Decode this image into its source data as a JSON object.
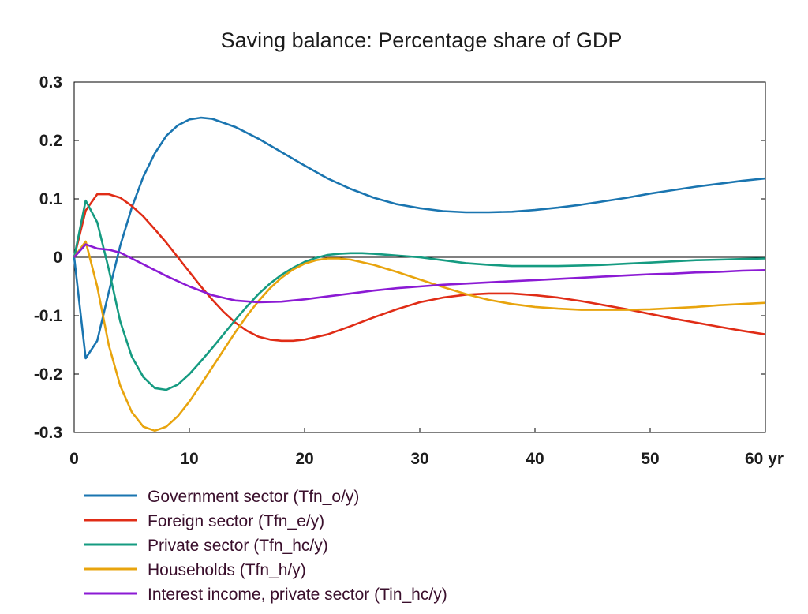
{
  "chart_data": {
    "type": "line",
    "title": "Saving balance: Percentage share of GDP",
    "xlabel": "",
    "ylabel": "",
    "x_unit": "yr",
    "xlim": [
      0,
      60
    ],
    "ylim": [
      -0.3,
      0.3
    ],
    "x_ticks": [
      0,
      10,
      20,
      30,
      40,
      50,
      60
    ],
    "x_tick_labels": [
      "0",
      "10",
      "20",
      "30",
      "40",
      "50",
      "60 yr"
    ],
    "y_ticks": [
      0.3,
      0.2,
      0.1,
      0,
      -0.1,
      -0.2,
      -0.3
    ],
    "y_tick_labels": [
      "0.3",
      "0.2",
      "0.1",
      "0",
      "-0.1",
      "-0.2",
      "-0.3"
    ],
    "grid": false,
    "zero_line": true,
    "legend_position": "bottom-left",
    "series": [
      {
        "name": "Government sector (Tfn_o/y)",
        "color": "#1a75b0",
        "x": [
          0,
          1,
          2,
          3,
          4,
          5,
          6,
          7,
          8,
          9,
          10,
          11,
          12,
          14,
          16,
          18,
          20,
          22,
          24,
          26,
          28,
          30,
          32,
          34,
          36,
          38,
          40,
          42,
          44,
          46,
          48,
          50,
          52,
          54,
          56,
          58,
          60
        ],
        "y": [
          0,
          -0.173,
          -0.143,
          -0.06,
          0.02,
          0.085,
          0.138,
          0.178,
          0.208,
          0.226,
          0.236,
          0.239,
          0.237,
          0.223,
          0.203,
          0.18,
          0.157,
          0.135,
          0.117,
          0.102,
          0.091,
          0.084,
          0.079,
          0.077,
          0.077,
          0.078,
          0.081,
          0.085,
          0.09,
          0.096,
          0.102,
          0.109,
          0.115,
          0.121,
          0.126,
          0.131,
          0.135
        ]
      },
      {
        "name": "Foreign sector (Tfn_e/y)",
        "color": "#e02c16",
        "x": [
          0,
          1,
          2,
          3,
          4,
          5,
          6,
          7,
          8,
          9,
          10,
          11,
          12,
          13,
          14,
          15,
          16,
          17,
          18,
          19,
          20,
          22,
          24,
          26,
          28,
          30,
          32,
          34,
          36,
          38,
          40,
          42,
          44,
          46,
          48,
          50,
          52,
          54,
          56,
          58,
          60
        ],
        "y": [
          0,
          0.08,
          0.108,
          0.108,
          0.102,
          0.088,
          0.07,
          0.048,
          0.025,
          0.0,
          -0.025,
          -0.05,
          -0.073,
          -0.094,
          -0.112,
          -0.126,
          -0.136,
          -0.141,
          -0.143,
          -0.143,
          -0.141,
          -0.132,
          -0.118,
          -0.103,
          -0.089,
          -0.077,
          -0.069,
          -0.064,
          -0.062,
          -0.062,
          -0.065,
          -0.069,
          -0.075,
          -0.082,
          -0.089,
          -0.097,
          -0.105,
          -0.112,
          -0.119,
          -0.126,
          -0.132
        ]
      },
      {
        "name": "Private sector (Tfn_hc/y)",
        "color": "#159b81",
        "x": [
          0,
          1,
          2,
          3,
          4,
          5,
          6,
          7,
          8,
          9,
          10,
          11,
          12,
          13,
          14,
          15,
          16,
          17,
          18,
          19,
          20,
          21,
          22,
          23,
          24,
          25,
          26,
          28,
          30,
          32,
          34,
          36,
          38,
          40,
          42,
          44,
          46,
          48,
          50,
          52,
          54,
          56,
          58,
          60
        ],
        "y": [
          0,
          0.097,
          0.06,
          -0.02,
          -0.11,
          -0.17,
          -0.205,
          -0.224,
          -0.227,
          -0.218,
          -0.2,
          -0.178,
          -0.155,
          -0.131,
          -0.107,
          -0.084,
          -0.063,
          -0.045,
          -0.03,
          -0.018,
          -0.008,
          -0.001,
          0.004,
          0.006,
          0.007,
          0.007,
          0.006,
          0.003,
          0.0,
          -0.005,
          -0.01,
          -0.013,
          -0.015,
          -0.015,
          -0.015,
          -0.014,
          -0.013,
          -0.011,
          -0.009,
          -0.007,
          -0.005,
          -0.004,
          -0.003,
          -0.002
        ]
      },
      {
        "name": "Households (Tfn_h/y)",
        "color": "#e8a40d",
        "x": [
          0,
          1,
          2,
          3,
          4,
          5,
          6,
          7,
          8,
          9,
          10,
          11,
          12,
          13,
          14,
          15,
          16,
          17,
          18,
          19,
          20,
          21,
          22,
          23,
          24,
          26,
          28,
          30,
          32,
          34,
          36,
          38,
          40,
          42,
          44,
          46,
          48,
          50,
          52,
          54,
          56,
          58,
          60
        ],
        "y": [
          0,
          0.027,
          -0.05,
          -0.15,
          -0.22,
          -0.265,
          -0.29,
          -0.297,
          -0.29,
          -0.272,
          -0.247,
          -0.218,
          -0.188,
          -0.158,
          -0.128,
          -0.1,
          -0.075,
          -0.053,
          -0.035,
          -0.021,
          -0.011,
          -0.005,
          -0.002,
          -0.002,
          -0.004,
          -0.013,
          -0.025,
          -0.038,
          -0.051,
          -0.063,
          -0.073,
          -0.08,
          -0.085,
          -0.088,
          -0.09,
          -0.09,
          -0.09,
          -0.089,
          -0.087,
          -0.085,
          -0.082,
          -0.08,
          -0.078
        ]
      },
      {
        "name": "Interest income, private sector (Tin_hc/y)",
        "color": "#8b1ad4",
        "x": [
          0,
          1,
          2,
          3,
          4,
          5,
          6,
          8,
          10,
          12,
          14,
          16,
          18,
          20,
          22,
          24,
          26,
          28,
          30,
          32,
          34,
          36,
          38,
          40,
          42,
          44,
          46,
          48,
          50,
          52,
          54,
          56,
          58,
          60
        ],
        "y": [
          0,
          0.022,
          0.015,
          0.013,
          0.008,
          -0.002,
          -0.012,
          -0.032,
          -0.05,
          -0.065,
          -0.074,
          -0.077,
          -0.076,
          -0.072,
          -0.067,
          -0.062,
          -0.057,
          -0.053,
          -0.05,
          -0.047,
          -0.045,
          -0.043,
          -0.041,
          -0.039,
          -0.037,
          -0.035,
          -0.033,
          -0.031,
          -0.029,
          -0.028,
          -0.026,
          -0.025,
          -0.023,
          -0.022
        ]
      }
    ]
  }
}
